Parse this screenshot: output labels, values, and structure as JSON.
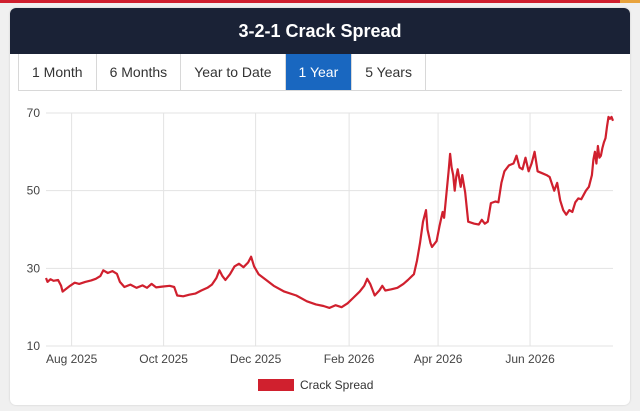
{
  "header": {
    "title": "3-2-1 Crack Spread"
  },
  "tabs": [
    {
      "label": "1 Month",
      "active": false
    },
    {
      "label": "6 Months",
      "active": false
    },
    {
      "label": "Year to Date",
      "active": false
    },
    {
      "label": "1 Year",
      "active": true
    },
    {
      "label": "5 Years",
      "active": false
    }
  ],
  "colors": {
    "series": "#d0202e",
    "active_tab": "#1967c0",
    "header_bg": "#1a2236"
  },
  "chart_data": {
    "type": "line",
    "title": "",
    "xlabel": "",
    "ylabel": "",
    "ylim": [
      10,
      70
    ],
    "yticks": [
      10,
      30,
      50,
      70
    ],
    "xlim": [
      "2025-07-15",
      "2026-07-26"
    ],
    "xtick_labels": [
      "Aug 2025",
      "Oct 2025",
      "Dec 2025",
      "Feb 2026",
      "Apr 2026",
      "Jun 2026"
    ],
    "xtick_dates": [
      "2025-08-01",
      "2025-10-01",
      "2025-12-01",
      "2026-02-01",
      "2026-04-01",
      "2026-06-01"
    ],
    "grid": true,
    "legend": {
      "position": "bottom"
    },
    "series": [
      {
        "name": "Crack Spread",
        "color": "#d0202e",
        "points": [
          [
            "2025-07-15",
            27.5
          ],
          [
            "2025-07-16",
            26.5
          ],
          [
            "2025-07-18",
            27.2
          ],
          [
            "2025-07-20",
            26.8
          ],
          [
            "2025-07-23",
            27.0
          ],
          [
            "2025-07-25",
            25.5
          ],
          [
            "2025-07-26",
            24.0
          ],
          [
            "2025-07-28",
            24.6
          ],
          [
            "2025-07-31",
            25.5
          ],
          [
            "2025-08-03",
            26.3
          ],
          [
            "2025-08-06",
            26.0
          ],
          [
            "2025-08-10",
            26.5
          ],
          [
            "2025-08-14",
            26.9
          ],
          [
            "2025-08-17",
            27.3
          ],
          [
            "2025-08-20",
            28.0
          ],
          [
            "2025-08-22",
            29.5
          ],
          [
            "2025-08-25",
            28.8
          ],
          [
            "2025-08-28",
            29.3
          ],
          [
            "2025-08-31",
            28.6
          ],
          [
            "2025-09-02",
            26.5
          ],
          [
            "2025-09-05",
            25.2
          ],
          [
            "2025-09-09",
            25.8
          ],
          [
            "2025-09-13",
            25.0
          ],
          [
            "2025-09-17",
            25.6
          ],
          [
            "2025-09-20",
            25.0
          ],
          [
            "2025-09-23",
            26.0
          ],
          [
            "2025-09-26",
            25.1
          ],
          [
            "2025-09-30",
            25.3
          ],
          [
            "2025-10-05",
            25.5
          ],
          [
            "2025-10-08",
            25.2
          ],
          [
            "2025-10-10",
            23.0
          ],
          [
            "2025-10-14",
            22.8
          ],
          [
            "2025-10-18",
            23.2
          ],
          [
            "2025-10-22",
            23.5
          ],
          [
            "2025-10-26",
            24.3
          ],
          [
            "2025-10-30",
            25.0
          ],
          [
            "2025-11-02",
            25.8
          ],
          [
            "2025-11-05",
            27.5
          ],
          [
            "2025-11-07",
            29.5
          ],
          [
            "2025-11-09",
            28.0
          ],
          [
            "2025-11-11",
            27.0
          ],
          [
            "2025-11-14",
            28.5
          ],
          [
            "2025-11-17",
            30.5
          ],
          [
            "2025-11-20",
            31.2
          ],
          [
            "2025-11-23",
            30.3
          ],
          [
            "2025-11-26",
            31.5
          ],
          [
            "2025-11-28",
            33.0
          ],
          [
            "2025-11-30",
            30.5
          ],
          [
            "2025-12-03",
            28.5
          ],
          [
            "2025-12-08",
            27.0
          ],
          [
            "2025-12-13",
            25.5
          ],
          [
            "2025-12-20",
            24.0
          ],
          [
            "2025-12-28",
            23.0
          ],
          [
            "2026-01-04",
            21.5
          ],
          [
            "2026-01-10",
            20.7
          ],
          [
            "2026-01-15",
            20.3
          ],
          [
            "2026-01-19",
            19.8
          ],
          [
            "2026-01-23",
            20.5
          ],
          [
            "2026-01-27",
            20.0
          ],
          [
            "2026-01-31",
            21.0
          ],
          [
            "2026-02-04",
            22.5
          ],
          [
            "2026-02-08",
            24.0
          ],
          [
            "2026-02-11",
            25.5
          ],
          [
            "2026-02-13",
            27.3
          ],
          [
            "2026-02-15",
            26.0
          ],
          [
            "2026-02-17",
            24.0
          ],
          [
            "2026-02-18",
            23.0
          ],
          [
            "2026-02-21",
            24.3
          ],
          [
            "2026-02-23",
            25.5
          ],
          [
            "2026-02-25",
            24.3
          ],
          [
            "2026-03-01",
            24.6
          ],
          [
            "2026-03-05",
            25.0
          ],
          [
            "2026-03-09",
            26.0
          ],
          [
            "2026-03-12",
            27.0
          ],
          [
            "2026-03-16",
            28.5
          ],
          [
            "2026-03-18",
            32.0
          ],
          [
            "2026-03-20",
            36.5
          ],
          [
            "2026-03-22",
            42.0
          ],
          [
            "2026-03-24",
            45.0
          ],
          [
            "2026-03-25",
            40.0
          ],
          [
            "2026-03-27",
            36.5
          ],
          [
            "2026-03-28",
            35.5
          ],
          [
            "2026-03-31",
            37.0
          ],
          [
            "2026-04-02",
            41.0
          ],
          [
            "2026-04-04",
            44.5
          ],
          [
            "2026-04-05",
            43.0
          ],
          [
            "2026-04-07",
            51.0
          ],
          [
            "2026-04-08",
            55.0
          ],
          [
            "2026-04-09",
            59.5
          ],
          [
            "2026-04-10",
            56.0
          ],
          [
            "2026-04-11",
            54.0
          ],
          [
            "2026-04-12",
            50.0
          ],
          [
            "2026-04-13",
            53.5
          ],
          [
            "2026-04-14",
            55.5
          ],
          [
            "2026-04-16",
            51.0
          ],
          [
            "2026-04-17",
            54.0
          ],
          [
            "2026-04-19",
            49.5
          ],
          [
            "2026-04-21",
            42.0
          ],
          [
            "2026-04-25",
            41.5
          ],
          [
            "2026-04-28",
            41.3
          ],
          [
            "2026-04-30",
            42.5
          ],
          [
            "2026-05-02",
            41.5
          ],
          [
            "2026-05-04",
            42.0
          ],
          [
            "2026-05-06",
            46.8
          ],
          [
            "2026-05-09",
            47.2
          ],
          [
            "2026-05-11",
            47.0
          ],
          [
            "2026-05-13",
            52.0
          ],
          [
            "2026-05-15",
            55.0
          ],
          [
            "2026-05-18",
            56.5
          ],
          [
            "2026-05-21",
            57.0
          ],
          [
            "2026-05-23",
            59.0
          ],
          [
            "2026-05-25",
            56.0
          ],
          [
            "2026-05-27",
            55.5
          ],
          [
            "2026-05-29",
            58.5
          ],
          [
            "2026-05-31",
            55.0
          ],
          [
            "2026-06-02",
            57.0
          ],
          [
            "2026-06-04",
            60.0
          ],
          [
            "2026-06-06",
            55.0
          ],
          [
            "2026-06-09",
            54.5
          ],
          [
            "2026-06-12",
            54.0
          ],
          [
            "2026-06-14",
            53.5
          ],
          [
            "2026-06-17",
            50.0
          ],
          [
            "2026-06-19",
            52.0
          ],
          [
            "2026-06-21",
            47.5
          ],
          [
            "2026-06-23",
            45.0
          ],
          [
            "2026-06-25",
            43.8
          ],
          [
            "2026-06-27",
            45.0
          ],
          [
            "2026-06-29",
            44.5
          ],
          [
            "2026-07-01",
            47.0
          ],
          [
            "2026-07-03",
            48.0
          ],
          [
            "2026-07-05",
            47.8
          ],
          [
            "2026-07-08",
            50.0
          ],
          [
            "2026-07-10",
            51.0
          ],
          [
            "2026-07-12",
            54.0
          ],
          [
            "2026-07-13",
            58.0
          ],
          [
            "2026-07-14",
            60.0
          ],
          [
            "2026-07-15",
            57.0
          ],
          [
            "2026-07-16",
            61.5
          ],
          [
            "2026-07-17",
            58.5
          ],
          [
            "2026-07-18",
            59.0
          ],
          [
            "2026-07-19",
            61.0
          ],
          [
            "2026-07-20",
            62.5
          ],
          [
            "2026-07-21",
            63.5
          ],
          [
            "2026-07-22",
            66.5
          ],
          [
            "2026-07-23",
            69.0
          ],
          [
            "2026-07-24",
            68.5
          ],
          [
            "2026-07-25",
            69.0
          ],
          [
            "2026-07-26",
            68.0
          ]
        ]
      }
    ]
  }
}
